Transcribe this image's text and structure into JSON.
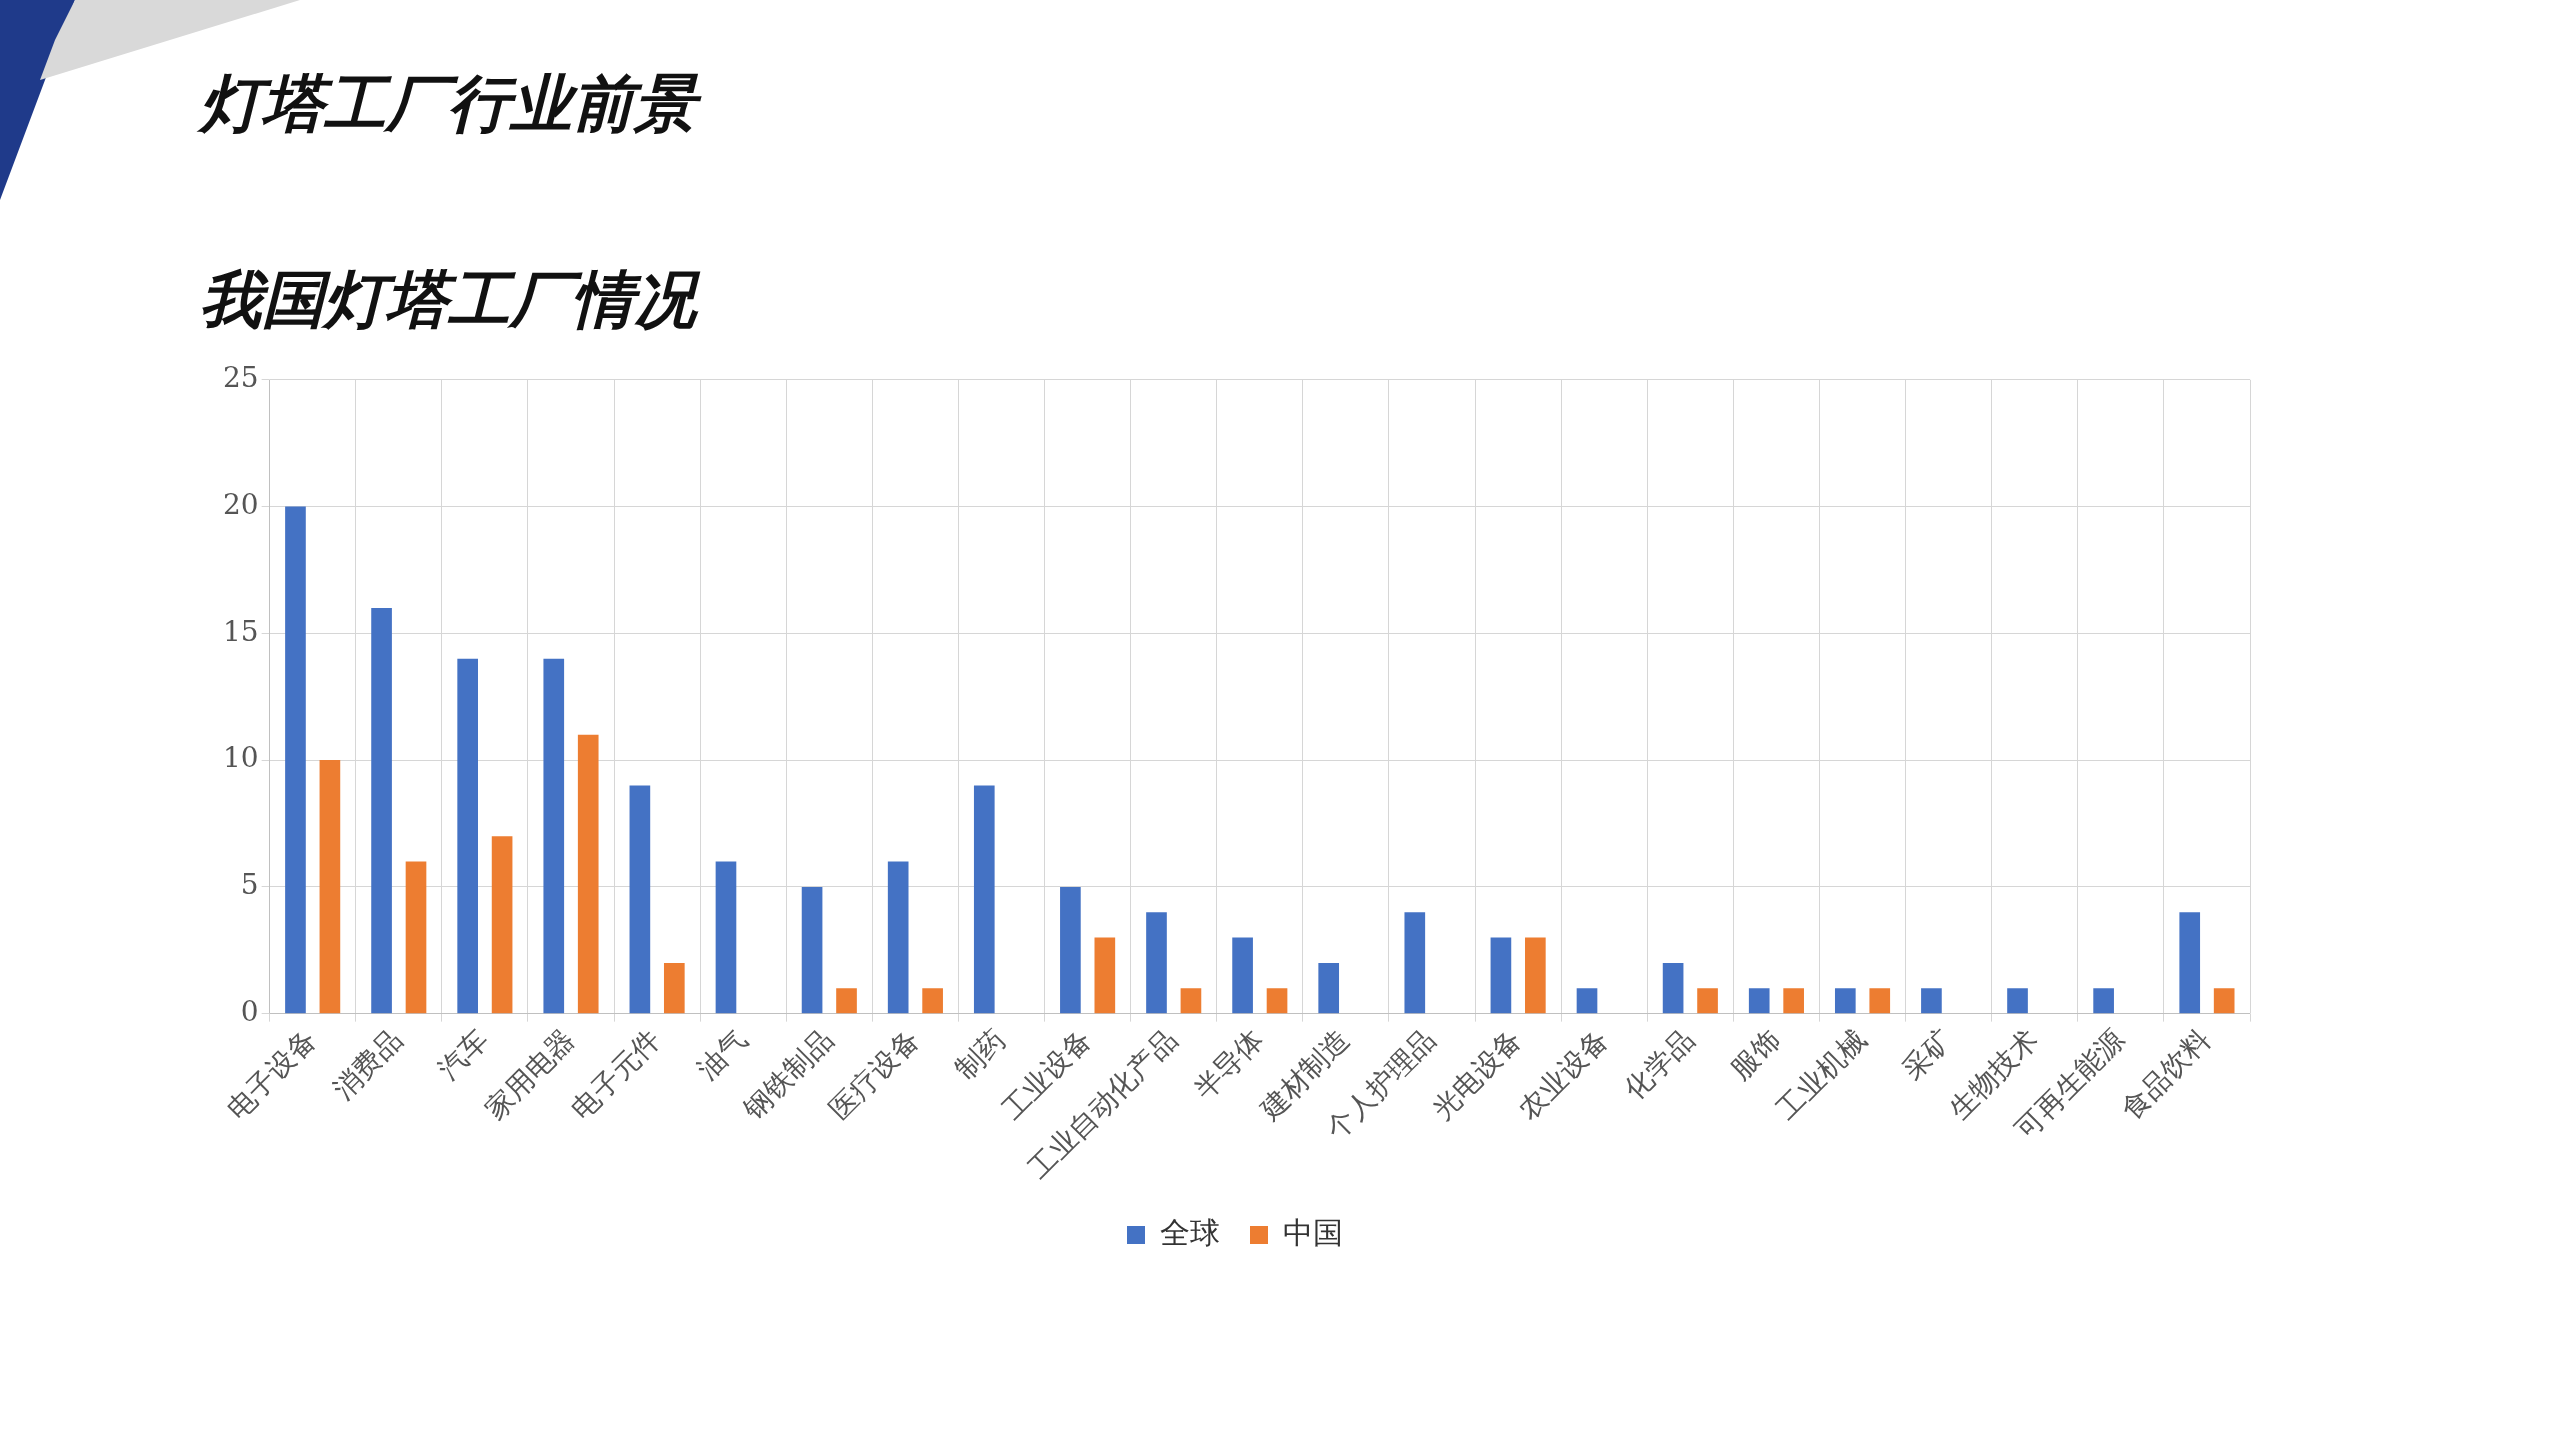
{
  "chart_data": {
    "type": "bar",
    "title": "灯塔工厂行业前景",
    "subtitle": "我国灯塔工厂情况",
    "categories": [
      "电子设备",
      "消费品",
      "汽车",
      "家用电器",
      "电子元件",
      "油气",
      "钢铁制品",
      "医疗设备",
      "制药",
      "工业设备",
      "工业自动化产品",
      "半导体",
      "建材制造",
      "个人护理品",
      "光电设备",
      "农业设备",
      "化学品",
      "服饰",
      "工业机械",
      "采矿",
      "生物技术",
      "可再生能源",
      "食品饮料"
    ],
    "series": [
      {
        "name": "全球",
        "color": "#4472c4",
        "values": [
          20,
          16,
          14,
          14,
          9,
          6,
          5,
          6,
          9,
          5,
          4,
          3,
          2,
          4,
          3,
          1,
          2,
          1,
          1,
          1,
          1,
          1,
          4
        ]
      },
      {
        "name": "中国",
        "color": "#ed7d31",
        "values": [
          10,
          6,
          7,
          11,
          2,
          null,
          1,
          1,
          null,
          3,
          1,
          1,
          null,
          null,
          3,
          null,
          1,
          1,
          1,
          null,
          null,
          null,
          1
        ]
      }
    ],
    "ylim": [
      0,
      25
    ],
    "yticks": [
      0,
      5,
      10,
      15,
      20,
      25
    ],
    "grid": true,
    "legend": "bottom"
  }
}
